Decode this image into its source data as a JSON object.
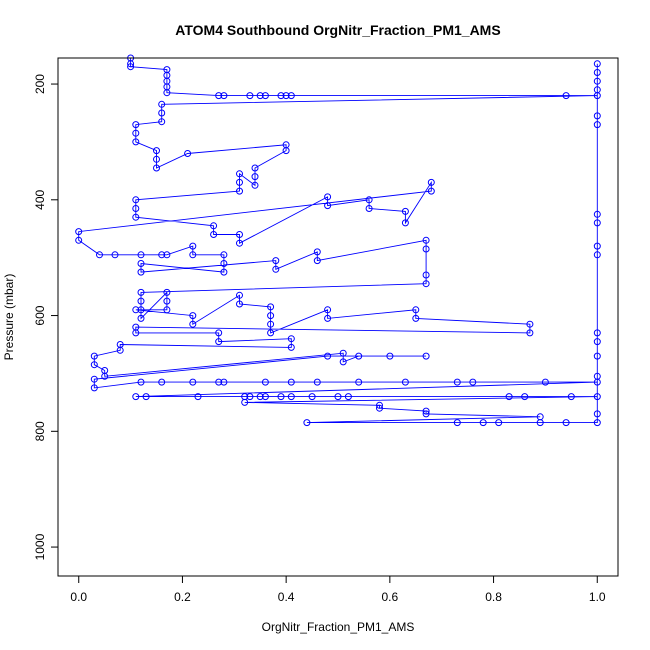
{
  "chart_data": {
    "type": "scatter",
    "title": "ATOM4 Southbound OrgNitr_Fraction_PM1_AMS",
    "xlabel": "OrgNitr_Fraction_PM1_AMS",
    "ylabel": "Pressure (mbar)",
    "xlim": [
      -0.04,
      1.04
    ],
    "ylim": [
      1050,
      155
    ],
    "x_ticks": [
      0.0,
      0.2,
      0.4,
      0.6,
      0.8,
      1.0
    ],
    "x_tick_labels": [
      "0.0",
      "0.2",
      "0.4",
      "0.6",
      "0.8",
      "1.0"
    ],
    "y_ticks": [
      200,
      400,
      600,
      800,
      1000
    ],
    "y_tick_labels": [
      "200",
      "400",
      "600",
      "800",
      "1000"
    ],
    "colors": {
      "series": "#0000ff",
      "axis": "#000000",
      "background": "#ffffff"
    },
    "marker": "open-circle",
    "series": [
      {
        "name": "OrgNitr_Fraction_PM1_AMS",
        "points": [
          {
            "x": 0.1,
            "y": 155
          },
          {
            "x": 0.1,
            "y": 165
          },
          {
            "x": 0.1,
            "y": 170
          },
          {
            "x": 0.17,
            "y": 175
          },
          {
            "x": 0.17,
            "y": 185
          },
          {
            "x": 0.17,
            "y": 195
          },
          {
            "x": 0.17,
            "y": 205
          },
          {
            "x": 0.17,
            "y": 215
          },
          {
            "x": 0.27,
            "y": 220
          },
          {
            "x": 0.28,
            "y": 220
          },
          {
            "x": 0.33,
            "y": 220
          },
          {
            "x": 0.35,
            "y": 220
          },
          {
            "x": 0.36,
            "y": 220
          },
          {
            "x": 0.39,
            "y": 220
          },
          {
            "x": 0.4,
            "y": 220
          },
          {
            "x": 0.41,
            "y": 220
          },
          {
            "x": 0.94,
            "y": 220
          },
          {
            "x": 1.0,
            "y": 220
          },
          {
            "x": 0.16,
            "y": 235
          },
          {
            "x": 0.16,
            "y": 250
          },
          {
            "x": 0.16,
            "y": 265
          },
          {
            "x": 0.11,
            "y": 270
          },
          {
            "x": 0.11,
            "y": 285
          },
          {
            "x": 0.11,
            "y": 300
          },
          {
            "x": 0.15,
            "y": 315
          },
          {
            "x": 0.15,
            "y": 330
          },
          {
            "x": 0.15,
            "y": 345
          },
          {
            "x": 0.21,
            "y": 320
          },
          {
            "x": 0.4,
            "y": 305
          },
          {
            "x": 0.4,
            "y": 315
          },
          {
            "x": 0.34,
            "y": 345
          },
          {
            "x": 0.34,
            "y": 360
          },
          {
            "x": 0.34,
            "y": 375
          },
          {
            "x": 0.31,
            "y": 355
          },
          {
            "x": 0.31,
            "y": 370
          },
          {
            "x": 0.31,
            "y": 385
          },
          {
            "x": 0.11,
            "y": 400
          },
          {
            "x": 0.11,
            "y": 415
          },
          {
            "x": 0.11,
            "y": 430
          },
          {
            "x": 0.26,
            "y": 445
          },
          {
            "x": 0.26,
            "y": 460
          },
          {
            "x": 0.31,
            "y": 460
          },
          {
            "x": 0.31,
            "y": 475
          },
          {
            "x": 0.48,
            "y": 395
          },
          {
            "x": 0.48,
            "y": 410
          },
          {
            "x": 0.56,
            "y": 400
          },
          {
            "x": 0.56,
            "y": 415
          },
          {
            "x": 0.63,
            "y": 420
          },
          {
            "x": 0.63,
            "y": 440
          },
          {
            "x": 0.68,
            "y": 370
          },
          {
            "x": 0.68,
            "y": 385
          },
          {
            "x": 0.0,
            "y": 455
          },
          {
            "x": 0.0,
            "y": 470
          },
          {
            "x": 0.04,
            "y": 495
          },
          {
            "x": 0.07,
            "y": 495
          },
          {
            "x": 0.12,
            "y": 495
          },
          {
            "x": 0.16,
            "y": 495
          },
          {
            "x": 0.17,
            "y": 495
          },
          {
            "x": 0.22,
            "y": 480
          },
          {
            "x": 0.22,
            "y": 495
          },
          {
            "x": 0.28,
            "y": 495
          },
          {
            "x": 0.28,
            "y": 510
          },
          {
            "x": 0.28,
            "y": 525
          },
          {
            "x": 0.12,
            "y": 510
          },
          {
            "x": 0.12,
            "y": 525
          },
          {
            "x": 0.38,
            "y": 505
          },
          {
            "x": 0.38,
            "y": 520
          },
          {
            "x": 0.46,
            "y": 490
          },
          {
            "x": 0.46,
            "y": 505
          },
          {
            "x": 0.67,
            "y": 470
          },
          {
            "x": 0.67,
            "y": 485
          },
          {
            "x": 0.67,
            "y": 530
          },
          {
            "x": 0.67,
            "y": 545
          },
          {
            "x": 0.12,
            "y": 560
          },
          {
            "x": 0.12,
            "y": 575
          },
          {
            "x": 0.12,
            "y": 590
          },
          {
            "x": 0.12,
            "y": 605
          },
          {
            "x": 0.17,
            "y": 560
          },
          {
            "x": 0.17,
            "y": 575
          },
          {
            "x": 0.17,
            "y": 590
          },
          {
            "x": 0.11,
            "y": 590
          },
          {
            "x": 0.22,
            "y": 600
          },
          {
            "x": 0.22,
            "y": 615
          },
          {
            "x": 0.31,
            "y": 565
          },
          {
            "x": 0.31,
            "y": 580
          },
          {
            "x": 0.37,
            "y": 585
          },
          {
            "x": 0.37,
            "y": 600
          },
          {
            "x": 0.37,
            "y": 615
          },
          {
            "x": 0.37,
            "y": 630
          },
          {
            "x": 0.48,
            "y": 590
          },
          {
            "x": 0.48,
            "y": 605
          },
          {
            "x": 0.65,
            "y": 590
          },
          {
            "x": 0.65,
            "y": 605
          },
          {
            "x": 0.87,
            "y": 615
          },
          {
            "x": 0.87,
            "y": 630
          },
          {
            "x": 0.11,
            "y": 620
          },
          {
            "x": 0.11,
            "y": 630
          },
          {
            "x": 0.27,
            "y": 630
          },
          {
            "x": 0.27,
            "y": 645
          },
          {
            "x": 0.41,
            "y": 640
          },
          {
            "x": 0.41,
            "y": 655
          },
          {
            "x": 0.08,
            "y": 650
          },
          {
            "x": 0.08,
            "y": 660
          },
          {
            "x": 0.03,
            "y": 670
          },
          {
            "x": 0.03,
            "y": 685
          },
          {
            "x": 0.05,
            "y": 695
          },
          {
            "x": 0.05,
            "y": 705
          },
          {
            "x": 0.51,
            "y": 665
          },
          {
            "x": 0.51,
            "y": 680
          },
          {
            "x": 0.54,
            "y": 670
          },
          {
            "x": 0.6,
            "y": 670
          },
          {
            "x": 0.67,
            "y": 670
          },
          {
            "x": 0.48,
            "y": 670
          },
          {
            "x": 0.03,
            "y": 710
          },
          {
            "x": 0.03,
            "y": 725
          },
          {
            "x": 0.12,
            "y": 715
          },
          {
            "x": 0.16,
            "y": 715
          },
          {
            "x": 0.22,
            "y": 715
          },
          {
            "x": 0.27,
            "y": 715
          },
          {
            "x": 0.28,
            "y": 715
          },
          {
            "x": 0.36,
            "y": 715
          },
          {
            "x": 0.41,
            "y": 715
          },
          {
            "x": 0.46,
            "y": 715
          },
          {
            "x": 0.54,
            "y": 715
          },
          {
            "x": 0.63,
            "y": 715
          },
          {
            "x": 0.73,
            "y": 715
          },
          {
            "x": 0.76,
            "y": 715
          },
          {
            "x": 0.9,
            "y": 715
          },
          {
            "x": 1.0,
            "y": 715
          },
          {
            "x": 0.11,
            "y": 740
          },
          {
            "x": 0.13,
            "y": 740
          },
          {
            "x": 0.23,
            "y": 740
          },
          {
            "x": 0.32,
            "y": 740
          },
          {
            "x": 0.33,
            "y": 740
          },
          {
            "x": 0.35,
            "y": 740
          },
          {
            "x": 0.36,
            "y": 740
          },
          {
            "x": 0.39,
            "y": 740
          },
          {
            "x": 0.41,
            "y": 740
          },
          {
            "x": 0.45,
            "y": 740
          },
          {
            "x": 0.5,
            "y": 740
          },
          {
            "x": 0.52,
            "y": 740
          },
          {
            "x": 0.83,
            "y": 740
          },
          {
            "x": 0.86,
            "y": 740
          },
          {
            "x": 0.95,
            "y": 740
          },
          {
            "x": 1.0,
            "y": 740
          },
          {
            "x": 0.32,
            "y": 750
          },
          {
            "x": 0.58,
            "y": 755
          },
          {
            "x": 0.58,
            "y": 760
          },
          {
            "x": 0.67,
            "y": 765
          },
          {
            "x": 0.67,
            "y": 770
          },
          {
            "x": 0.89,
            "y": 775
          },
          {
            "x": 0.44,
            "y": 785
          },
          {
            "x": 0.73,
            "y": 785
          },
          {
            "x": 0.78,
            "y": 785
          },
          {
            "x": 0.81,
            "y": 785
          },
          {
            "x": 0.89,
            "y": 785
          },
          {
            "x": 0.94,
            "y": 785
          },
          {
            "x": 1.0,
            "y": 785
          },
          {
            "x": 1.0,
            "y": 165
          },
          {
            "x": 1.0,
            "y": 180
          },
          {
            "x": 1.0,
            "y": 195
          },
          {
            "x": 1.0,
            "y": 210
          },
          {
            "x": 1.0,
            "y": 255
          },
          {
            "x": 1.0,
            "y": 270
          },
          {
            "x": 1.0,
            "y": 425
          },
          {
            "x": 1.0,
            "y": 440
          },
          {
            "x": 1.0,
            "y": 480
          },
          {
            "x": 1.0,
            "y": 495
          },
          {
            "x": 1.0,
            "y": 630
          },
          {
            "x": 1.0,
            "y": 645
          },
          {
            "x": 1.0,
            "y": 670
          },
          {
            "x": 1.0,
            "y": 705
          },
          {
            "x": 1.0,
            "y": 770
          }
        ]
      }
    ]
  }
}
